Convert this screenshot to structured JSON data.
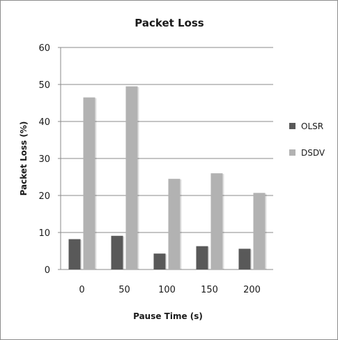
{
  "chart_data": {
    "type": "bar",
    "title": "Packet Loss",
    "xlabel": "Pause Time (s)",
    "ylabel": "Packet Loss (%)",
    "categories": [
      "0",
      "50",
      "100",
      "150",
      "200"
    ],
    "ylim": [
      0,
      60
    ],
    "yticks": [
      0,
      10,
      20,
      30,
      40,
      50,
      60
    ],
    "grid": true,
    "legend_position": "right",
    "series": [
      {
        "name": "OLSR",
        "color": "#595959",
        "values": [
          8.2,
          9.1,
          4.3,
          6.3,
          5.6
        ]
      },
      {
        "name": "DSDV",
        "color": "#b2b2b2",
        "values": [
          46.5,
          49.5,
          24.5,
          26.0,
          20.7
        ]
      }
    ]
  }
}
